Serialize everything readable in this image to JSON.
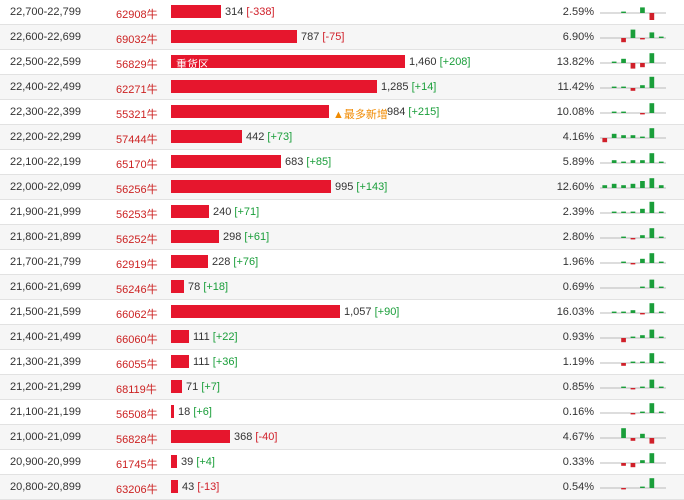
{
  "rows": [
    {
      "range": "22,700-22,799",
      "code": "62908牛",
      "volume": "314",
      "change": "[-338]",
      "change_sign": "neg",
      "pct": "2.59%",
      "bar_fraction": 0.215,
      "in_bar": "",
      "tag": "",
      "spark": [
        0,
        0,
        1,
        0,
        4,
        -5,
        0
      ]
    },
    {
      "range": "22,600-22,699",
      "code": "69032牛",
      "volume": "787",
      "change": "[-75]",
      "change_sign": "neg",
      "pct": "6.90%",
      "bar_fraction": 0.539,
      "in_bar": "",
      "tag": "",
      "spark": [
        0,
        0,
        -3,
        6,
        -1,
        4,
        1
      ]
    },
    {
      "range": "22,500-22,599",
      "code": "56829牛",
      "volume": "1,460",
      "change": "[+208]",
      "change_sign": "pos",
      "pct": "13.82%",
      "bar_fraction": 1.0,
      "in_bar": "重货区",
      "tag": "",
      "spark": [
        0,
        1,
        3,
        -4,
        -3,
        7,
        0
      ]
    },
    {
      "range": "22,400-22,499",
      "code": "62271牛",
      "volume": "1,285",
      "change": "[+14]",
      "change_sign": "pos",
      "pct": "11.42%",
      "bar_fraction": 0.88,
      "in_bar": "",
      "tag": "",
      "spark": [
        0,
        1,
        1,
        -2,
        2,
        8,
        0
      ]
    },
    {
      "range": "22,300-22,399",
      "code": "55321牛",
      "volume": "984",
      "change": "[+215]",
      "change_sign": "pos",
      "pct": "10.08%",
      "bar_fraction": 0.674,
      "in_bar": "",
      "tag": "▲最多新增",
      "spark": [
        0,
        1,
        1,
        0,
        -1,
        7,
        0
      ]
    },
    {
      "range": "22,200-22,299",
      "code": "57444牛",
      "volume": "442",
      "change": "[+73]",
      "change_sign": "pos",
      "pct": "4.16%",
      "bar_fraction": 0.303,
      "in_bar": "",
      "tag": "",
      "spark": [
        -3,
        3,
        2,
        2,
        1,
        7,
        0
      ]
    },
    {
      "range": "22,100-22,199",
      "code": "65170牛",
      "volume": "683",
      "change": "[+85]",
      "change_sign": "pos",
      "pct": "5.89%",
      "bar_fraction": 0.468,
      "in_bar": "",
      "tag": "",
      "spark": [
        0,
        2,
        1,
        2,
        2,
        7,
        1
      ]
    },
    {
      "range": "22,000-22,099",
      "code": "56256牛",
      "volume": "995",
      "change": "[+143]",
      "change_sign": "pos",
      "pct": "12.60%",
      "bar_fraction": 0.682,
      "in_bar": "",
      "tag": "",
      "spark": [
        2,
        3,
        2,
        3,
        5,
        7,
        2
      ]
    },
    {
      "range": "21,900-21,999",
      "code": "56253牛",
      "volume": "240",
      "change": "[+71]",
      "change_sign": "pos",
      "pct": "2.39%",
      "bar_fraction": 0.164,
      "in_bar": "",
      "tag": "",
      "spark": [
        0,
        1,
        1,
        1,
        3,
        8,
        1
      ]
    },
    {
      "range": "21,800-21,899",
      "code": "56252牛",
      "volume": "298",
      "change": "[+61]",
      "change_sign": "pos",
      "pct": "2.80%",
      "bar_fraction": 0.204,
      "in_bar": "",
      "tag": "",
      "spark": [
        0,
        0,
        1,
        -1,
        2,
        7,
        1
      ]
    },
    {
      "range": "21,700-21,799",
      "code": "62919牛",
      "volume": "228",
      "change": "[+76]",
      "change_sign": "pos",
      "pct": "1.96%",
      "bar_fraction": 0.156,
      "in_bar": "",
      "tag": "",
      "spark": [
        0,
        0,
        1,
        -1,
        3,
        7,
        1
      ]
    },
    {
      "range": "21,600-21,699",
      "code": "56246牛",
      "volume": "78",
      "change": "[+18]",
      "change_sign": "pos",
      "pct": "0.69%",
      "bar_fraction": 0.054,
      "in_bar": "",
      "tag": "",
      "spark": [
        0,
        0,
        0,
        0,
        1,
        6,
        1
      ]
    },
    {
      "range": "21,500-21,599",
      "code": "66062牛",
      "volume": "1,057",
      "change": "[+90]",
      "change_sign": "pos",
      "pct": "16.03%",
      "bar_fraction": 0.724,
      "in_bar": "",
      "tag": "",
      "spark": [
        0,
        1,
        1,
        2,
        -1,
        7,
        1
      ]
    },
    {
      "range": "21,400-21,499",
      "code": "66060牛",
      "volume": "111",
      "change": "[+22]",
      "change_sign": "pos",
      "pct": "0.93%",
      "bar_fraction": 0.076,
      "in_bar": "",
      "tag": "",
      "spark": [
        0,
        0,
        -3,
        1,
        2,
        6,
        1
      ]
    },
    {
      "range": "21,300-21,399",
      "code": "66055牛",
      "volume": "111",
      "change": "[+36]",
      "change_sign": "pos",
      "pct": "1.19%",
      "bar_fraction": 0.076,
      "in_bar": "",
      "tag": "",
      "spark": [
        0,
        0,
        -2,
        1,
        1,
        7,
        1
      ]
    },
    {
      "range": "21,200-21,299",
      "code": "68119牛",
      "volume": "71",
      "change": "[+7]",
      "change_sign": "pos",
      "pct": "0.85%",
      "bar_fraction": 0.049,
      "in_bar": "",
      "tag": "",
      "spark": [
        0,
        0,
        1,
        -1,
        1,
        6,
        1
      ]
    },
    {
      "range": "21,100-21,199",
      "code": "56508牛",
      "volume": "18",
      "change": "[+6]",
      "change_sign": "pos",
      "pct": "0.16%",
      "bar_fraction": 0.012,
      "in_bar": "",
      "tag": "",
      "spark": [
        0,
        0,
        0,
        -1,
        1,
        7,
        1
      ]
    },
    {
      "range": "21,000-21,099",
      "code": "56828牛",
      "volume": "368",
      "change": "[-40]",
      "change_sign": "neg",
      "pct": "4.67%",
      "bar_fraction": 0.252,
      "in_bar": "",
      "tag": "",
      "spark": [
        0,
        0,
        7,
        -2,
        3,
        -4,
        0
      ]
    },
    {
      "range": "20,900-20,999",
      "code": "61745牛",
      "volume": "39",
      "change": "[+4]",
      "change_sign": "pos",
      "pct": "0.33%",
      "bar_fraction": 0.027,
      "in_bar": "",
      "tag": "",
      "spark": [
        0,
        0,
        -2,
        -3,
        2,
        7,
        0
      ]
    },
    {
      "range": "20,800-20,899",
      "code": "63206牛",
      "volume": "43",
      "change": "[-13]",
      "change_sign": "neg",
      "pct": "0.54%",
      "bar_fraction": 0.029,
      "in_bar": "",
      "tag": "",
      "spark": [
        0,
        0,
        -1,
        0,
        1,
        7,
        0
      ]
    }
  ],
  "colors": {
    "bar": "#e6162d",
    "code": "#cc2222",
    "positive": "#1a9e3a",
    "negative": "#d0202a",
    "tag": "#f08a00"
  }
}
